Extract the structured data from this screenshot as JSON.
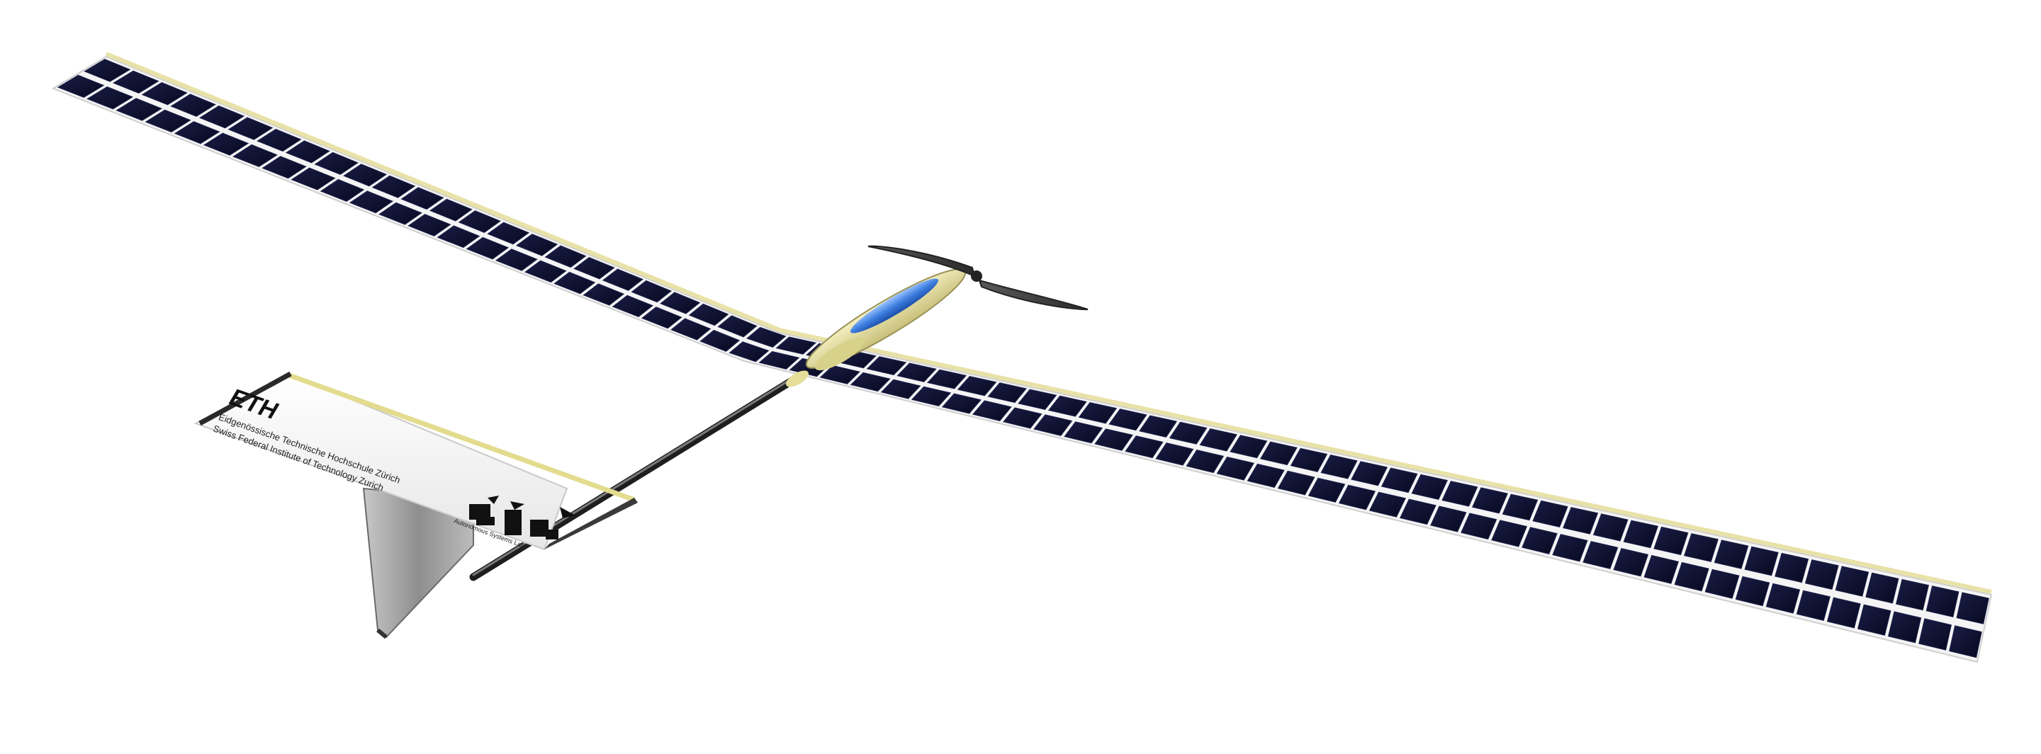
{
  "tail": {
    "logo": "ETH",
    "institution_de": "Eidgenössische Technische Hochschule Zürich",
    "institution_en": "Swiss Federal Institute of Technology Zurich",
    "lab_name": "Autonomous Systems Lab"
  },
  "colors": {
    "background": "#ffffff",
    "solar_cell": "#0d1030",
    "cell_gap": "#f2f2f2",
    "wing_edge": "#e8e2a8",
    "fuselage": "#e9e3a0",
    "canopy": "#3f7fe0",
    "boom": "#2a2a2a",
    "propeller": "#3a3a3a",
    "tail_surface": "#f4f4f4",
    "fin": "#9a9a9a"
  },
  "icons": [
    "solar-panel-icon",
    "propeller-icon",
    "asl-logo-icon"
  ]
}
